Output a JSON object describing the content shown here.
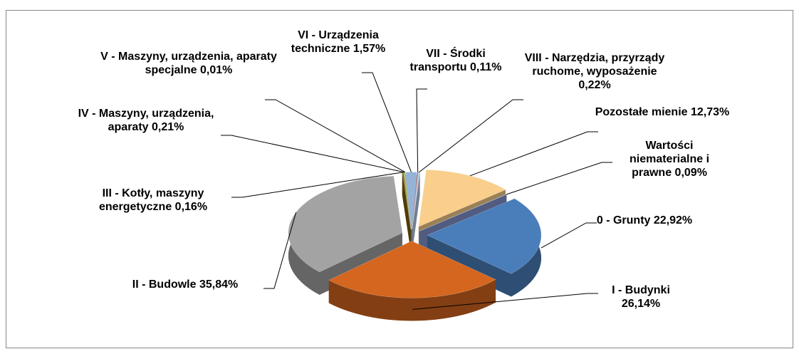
{
  "chart_data": {
    "type": "pie3d",
    "categories": [
      "0 - Grunty",
      "I - Budynki",
      "II - Budowle",
      "III - Kotły, maszyny energetyczne",
      "IV - Maszyny, urządzenia, aparaty",
      "V - Maszyny, urządzenia, aparaty specjalne",
      "VI - Urządzenia techniczne",
      "VII - Środki transportu",
      "VIII - Narzędzia, przyrządy ruchome, wyposażenie",
      "Pozostałe mienie",
      "Wartości niematerialne i prawne"
    ],
    "values": [
      22.92,
      26.14,
      35.84,
      0.16,
      0.21,
      0.01,
      1.57,
      0.11,
      0.22,
      12.73,
      0.09
    ],
    "value_labels": [
      "22,92%",
      "26,14%",
      "35,84%",
      "0,16%",
      "0,21%",
      "0,01%",
      "1,57%",
      "0,11%",
      "0,22%",
      "12,73%",
      "0,09%"
    ],
    "colors": [
      "#4a7ebb",
      "#d4661f",
      "#a3a3a3",
      "#7f5f0f",
      "#9bbb59",
      "#c0504d",
      "#95b3d7",
      "#c0504d",
      "#b9cde5",
      "#f9cf8b",
      "#8395cf"
    ]
  }
}
